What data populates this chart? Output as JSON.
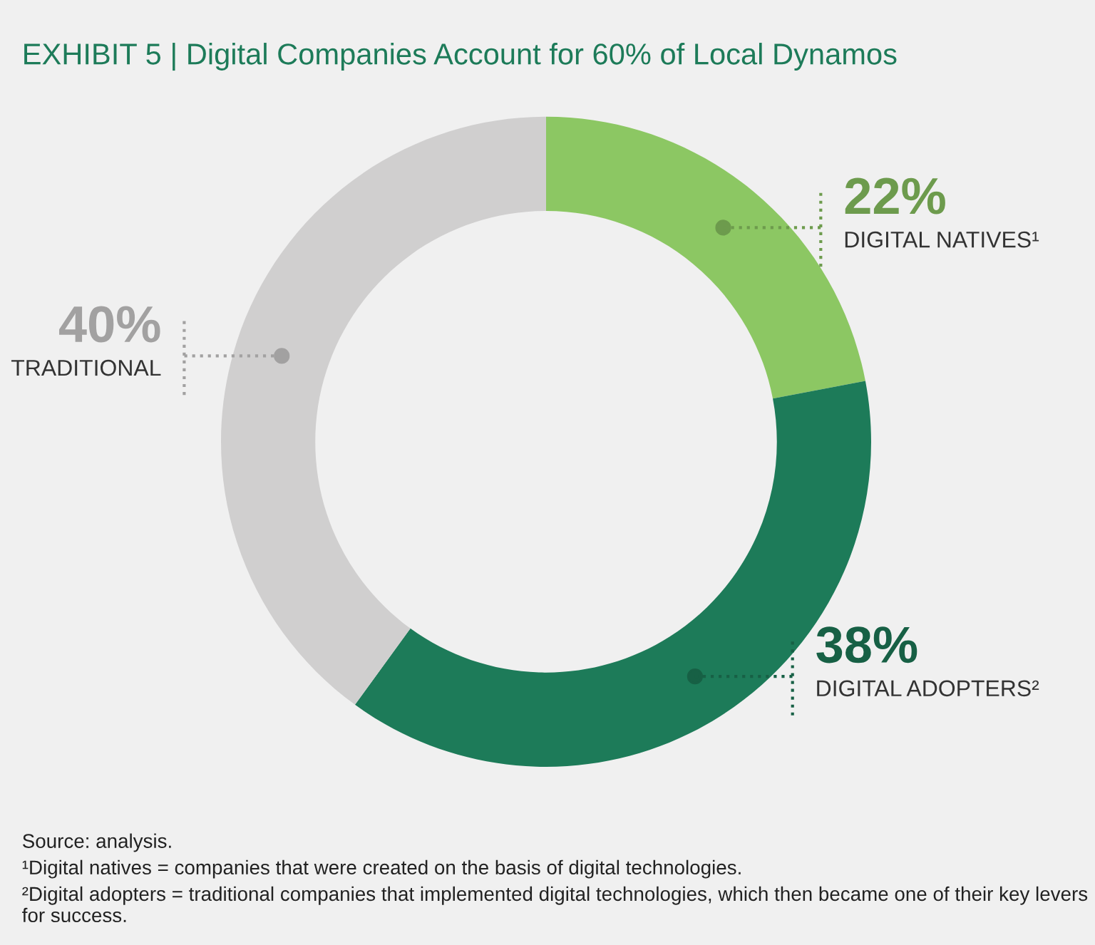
{
  "chart_data": {
    "type": "donut",
    "title": "EXHIBIT 5 | Digital Companies Account for 60% of Local Dynamos",
    "categories": [
      "DIGITAL NATIVES¹",
      "DIGITAL ADOPTERS²",
      "TRADITIONAL"
    ],
    "values": [
      22,
      38,
      40
    ],
    "value_labels": [
      "22%",
      "38%",
      "40%"
    ],
    "colors": [
      "#8cc763",
      "#1d7b59",
      "#d0cfcf"
    ],
    "legend": false,
    "annotations": [
      "Source: analysis.",
      "¹Digital natives = companies that were created on the basis of digital technologies.",
      "²Digital adopters = traditional companies that implemented digital technologies, which then became one of their key levers for success."
    ]
  }
}
